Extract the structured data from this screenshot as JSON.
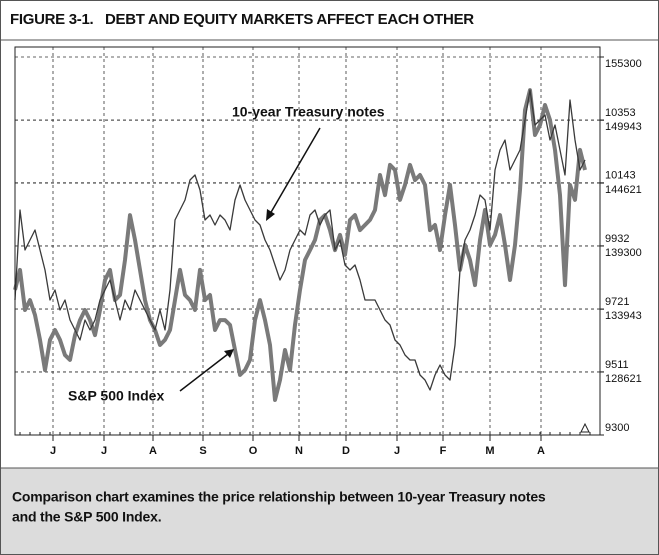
{
  "figure_title": "FIGURE 3-1.   DEBT AND EQUITY MARKETS AFFECT EACH OTHER",
  "caption": [
    "Comparison chart examines the price relationship between 10-year Treasury notes",
    "and the S&P 500 Index."
  ],
  "chart_data": {
    "type": "line",
    "xlim": [
      0,
      117
    ],
    "xticks": [
      {
        "value": 7.6,
        "label": "J"
      },
      {
        "value": 17.8,
        "label": "J"
      },
      {
        "value": 27.6,
        "label": "A"
      },
      {
        "value": 37.6,
        "label": "S"
      },
      {
        "value": 47.6,
        "label": "O"
      },
      {
        "value": 56.8,
        "label": "N"
      },
      {
        "value": 66.2,
        "label": "D"
      },
      {
        "value": 76.4,
        "label": "J"
      },
      {
        "value": 85.6,
        "label": "F"
      },
      {
        "value": 95,
        "label": "M"
      },
      {
        "value": 105.2,
        "label": "A"
      }
    ],
    "ylim": [
      9300,
      10597
    ],
    "yticks": [
      9300,
      9511,
      9721,
      9932,
      10143,
      10353
    ],
    "y2lim": [
      123285,
      156147
    ],
    "y2ticks": [
      128621,
      133943,
      139300,
      144621,
      149943,
      155300
    ],
    "grid": true,
    "series": [
      {
        "name": "S&P 500 Index",
        "color": "#7a7a7a",
        "axis": "y",
        "values": [
          9785,
          9852,
          9718,
          9751,
          9701,
          9618,
          9517,
          9618,
          9651,
          9618,
          9567,
          9551,
          9634,
          9684,
          9718,
          9684,
          9634,
          9718,
          9818,
          9852,
          9751,
          9768,
          9885,
          10035,
          9952,
          9852,
          9751,
          9684,
          9651,
          9601,
          9618,
          9651,
          9751,
          9852,
          9768,
          9751,
          9718,
          9852,
          9751,
          9768,
          9651,
          9684,
          9684,
          9668,
          9584,
          9501,
          9517,
          9551,
          9684,
          9751,
          9684,
          9601,
          9417,
          9484,
          9584,
          9517,
          9668,
          9785,
          9885,
          9918,
          9952,
          10019,
          10035,
          9985,
          9918,
          9969,
          9902,
          10019,
          10035,
          9985,
          10002,
          10019,
          10052,
          10169,
          10102,
          10203,
          10186,
          10086,
          10136,
          10203,
          10152,
          10169,
          10136,
          9985,
          10002,
          9918,
          10035,
          10136,
          10002,
          9852,
          9935,
          9885,
          9801,
          9952,
          10052,
          9935,
          9969,
          10035,
          9935,
          9818,
          9935,
          10119,
          10386,
          10453,
          10303,
          10336,
          10403,
          10353,
          10253,
          10102,
          9801,
          10136,
          10086,
          10253,
          10186
        ]
      },
      {
        "name": "10-year Treasury notes",
        "color": "#3a3a3a",
        "axis": "y2",
        "values": [
          134720,
          142343,
          138955,
          139802,
          140649,
          138955,
          137261,
          134720,
          135567,
          133873,
          134720,
          133026,
          132179,
          131332,
          133026,
          132179,
          133026,
          134720,
          135567,
          136414,
          134720,
          133026,
          134720,
          133873,
          135567,
          134720,
          133873,
          133026,
          132179,
          133873,
          132179,
          135567,
          141496,
          142343,
          143190,
          144884,
          145307,
          144037,
          141496,
          141919,
          141072,
          141919,
          141496,
          140649,
          143190,
          144460,
          143190,
          142343,
          141496,
          141072,
          139802,
          138955,
          137684,
          136414,
          137261,
          138955,
          139802,
          140649,
          140225,
          141919,
          142343,
          141072,
          141919,
          142343,
          138955,
          139802,
          137684,
          137261,
          137684,
          136414,
          134720,
          134720,
          134720,
          133873,
          133026,
          132602,
          131332,
          130908,
          130061,
          129638,
          129638,
          128367,
          127944,
          127097,
          128367,
          129214,
          128367,
          127944,
          130908,
          137261,
          139802,
          140649,
          141919,
          143613,
          143190,
          140649,
          145731,
          147425,
          148272,
          145731,
          146578,
          147425,
          149966,
          152507,
          149542,
          149966,
          150389,
          148272,
          149542,
          147425,
          145307,
          151660,
          148272,
          145731,
          146578
        ]
      }
    ]
  }
}
